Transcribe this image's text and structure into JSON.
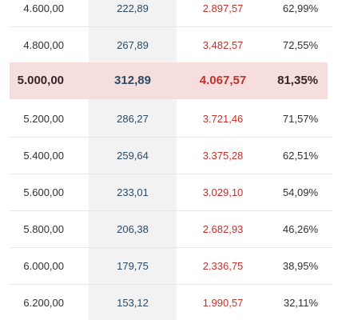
{
  "rows": [
    {
      "amount": "4.600,00",
      "col2": "222,89",
      "col3": "2.897,57",
      "pct": "62,99%",
      "highlight": false
    },
    {
      "amount": "4.800,00",
      "col2": "267,89",
      "col3": "3.482,57",
      "pct": "72,55%",
      "highlight": false
    },
    {
      "amount": "5.000,00",
      "col2": "312,89",
      "col3": "4.067,57",
      "pct": "81,35%",
      "highlight": true
    },
    {
      "amount": "5.200,00",
      "col2": "286,27",
      "col3": "3.721,46",
      "pct": "71,57%",
      "highlight": false
    },
    {
      "amount": "5.400,00",
      "col2": "259,64",
      "col3": "3.375,28",
      "pct": "62,51%",
      "highlight": false
    },
    {
      "amount": "5.600,00",
      "col2": "233,01",
      "col3": "3.029,10",
      "pct": "54,09%",
      "highlight": false
    },
    {
      "amount": "5.800,00",
      "col2": "206,38",
      "col3": "2.682,93",
      "pct": "46,26%",
      "highlight": false
    },
    {
      "amount": "6.000,00",
      "col2": "179,75",
      "col3": "2.336,75",
      "pct": "38,95%",
      "highlight": false
    },
    {
      "amount": "6.200,00",
      "col2": "153,12",
      "col3": "1.990,57",
      "pct": "32,11%",
      "highlight": false
    }
  ]
}
